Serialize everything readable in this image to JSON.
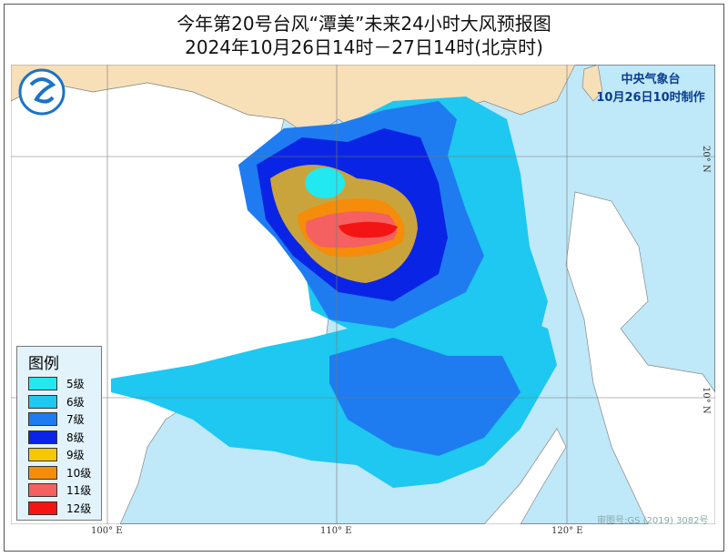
{
  "title": {
    "line1": "今年第20号台风“潭美”未来24小时大风预报图",
    "line2": "2024年10月26日14时－27日14时(北京时)"
  },
  "agency": {
    "name": "中央气象台",
    "issued": "10月26日10时制作"
  },
  "legend": {
    "title": "图例",
    "items": [
      {
        "label": "5级",
        "color": "#22e8f0"
      },
      {
        "label": "6级",
        "color": "#1ec8f0"
      },
      {
        "label": "7级",
        "color": "#1e7cf0"
      },
      {
        "label": "8级",
        "color": "#0a24e6"
      },
      {
        "label": "9级",
        "color": "#f5c800"
      },
      {
        "label": "10级",
        "color": "#f58c0a"
      },
      {
        "label": "11级",
        "color": "#f56060"
      },
      {
        "label": "12级",
        "color": "#f51414"
      }
    ]
  },
  "axes": {
    "lon": [
      "100° E",
      "110° E",
      "120° E"
    ],
    "lat": [
      "20° N",
      "10° N"
    ]
  },
  "colors": {
    "sea": "#bfe8f8",
    "china_land": "#f7dfb8",
    "other_land": "#ffffff"
  },
  "map_approval": "审图号:GS (2019) 3082号",
  "logo": "cma-logo-icon"
}
